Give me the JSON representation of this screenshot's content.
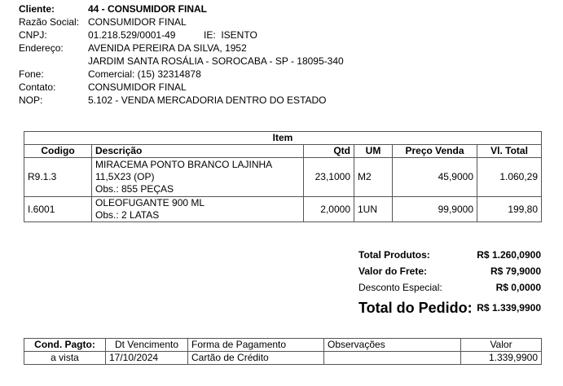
{
  "cliente": {
    "cliente_label": "Cliente:",
    "cliente_value": "44 - CONSUMIDOR FINAL",
    "razao_label": "Razão Social:",
    "razao_value": "CONSUMIDOR FINAL",
    "cnpj_label": "CNPJ:",
    "cnpj_value": "01.218.529/0001-49",
    "ie_label_value": "IE:  ISENTO",
    "endereco_label": "Endereço:",
    "endereco_line1": "AVENIDA PEREIRA DA SILVA, 1952",
    "endereco_line2": "JARDIM SANTA ROSÁLIA - SOROCABA - SP - 18095-340",
    "fone_label": "Fone:",
    "fone_value": "Comercial: (15) 32314878",
    "contato_label": "Contato:",
    "contato_value": "CONSUMIDOR FINAL",
    "nop_label": "NOP:",
    "nop_value": "5.102 - VENDA MERCADORIA DENTRO DO ESTADO"
  },
  "items": {
    "title": "Item",
    "headers": [
      "Codigo",
      "Descrição",
      "Qtd",
      "UM",
      "Preço Venda",
      "Vl. Total"
    ],
    "rows": [
      {
        "codigo": "R9.1.3",
        "desc1": "MIRACEMA PONTO BRANCO LAJINHA",
        "desc2": "11,5X23 (OP)",
        "obs": "Obs.: 855 PEÇAS",
        "qtd": "23,1000",
        "um": "M2",
        "preco": "45,9000",
        "total": "1.060,29"
      },
      {
        "codigo": "I.6001",
        "desc1": "OLEOFUGANTE 900 ML",
        "obs": "Obs.: 2 LATAS",
        "qtd": "2,0000",
        "um": "1UN",
        "preco": "99,9000",
        "total": "199,80"
      }
    ]
  },
  "totals": {
    "produtos_label": "Total Produtos:",
    "produtos_value": "R$ 1.260,0900",
    "frete_label": "Valor do Frete:",
    "frete_value": "R$ 79,9000",
    "desconto_label": "Desconto Especial:",
    "desconto_value": "R$ 0,0000",
    "pedido_label": "Total do Pedido:",
    "pedido_value": "R$ 1.339,9900"
  },
  "payment": {
    "headers": [
      "Cond. Pagto:",
      "Dt Vencimento",
      "Forma de Pagamento",
      "Observações",
      "Valor"
    ],
    "row": {
      "cond": "a vista",
      "venc": "17/10/2024",
      "forma": "Cartão de Crédito",
      "obs": "",
      "valor": "1.339,9900"
    }
  }
}
